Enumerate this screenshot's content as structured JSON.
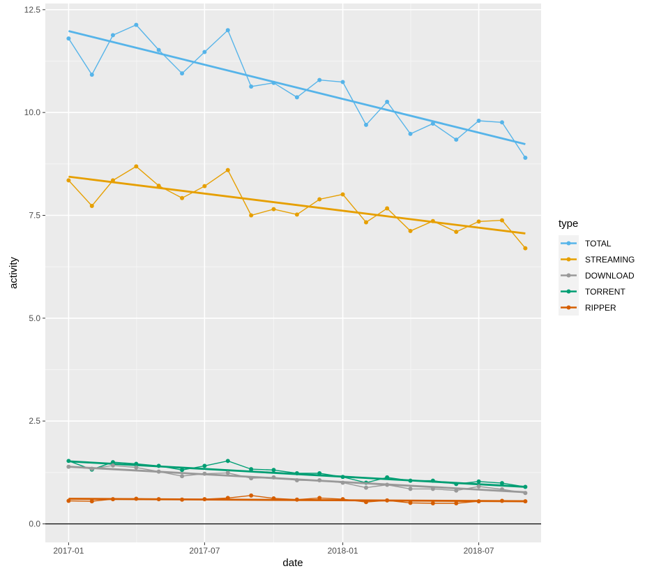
{
  "chart_data": {
    "type": "line",
    "xlabel": "date",
    "ylabel": "activity",
    "ylim": [
      -0.45,
      12.65
    ],
    "xlim": [
      "2016-12-01",
      "2018-09-22"
    ],
    "background": "#ebebeb",
    "grid": true,
    "legend": {
      "title": "type",
      "position": "right"
    },
    "x_ticks": [
      {
        "value": "2017-01-01",
        "label": "2017-01"
      },
      {
        "value": "2017-07-01",
        "label": "2017-07"
      },
      {
        "value": "2018-01-01",
        "label": "2018-01"
      },
      {
        "value": "2018-07-01",
        "label": "2018-07"
      }
    ],
    "y_ticks": [
      0,
      2.5,
      5,
      7.5,
      10,
      12.5
    ],
    "y_tick_labels": [
      "0.0",
      "2.5",
      "5.0",
      "7.5",
      "10.0",
      "12.5"
    ],
    "hline": 0,
    "x": [
      "2017-01-01",
      "2017-02-01",
      "2017-03-01",
      "2017-04-01",
      "2017-05-01",
      "2017-06-01",
      "2017-07-01",
      "2017-08-01",
      "2017-09-01",
      "2017-10-01",
      "2017-11-01",
      "2017-12-01",
      "2018-01-01",
      "2018-02-01",
      "2018-03-01",
      "2018-04-01",
      "2018-05-01",
      "2018-06-01",
      "2018-07-01",
      "2018-08-01",
      "2018-09-01"
    ],
    "series": [
      {
        "name": "TOTAL",
        "color": "#56b4e9",
        "values": [
          11.8,
          10.92,
          11.88,
          12.13,
          11.52,
          10.95,
          11.47,
          12.0,
          10.63,
          10.72,
          10.37,
          10.79,
          10.74,
          9.7,
          10.26,
          9.48,
          9.73,
          9.34,
          9.8,
          9.76,
          8.9
        ],
        "trend": [
          11.98,
          9.23
        ]
      },
      {
        "name": "STREAMING",
        "color": "#e69f00",
        "values": [
          8.35,
          7.73,
          8.35,
          8.69,
          8.22,
          7.92,
          8.21,
          8.6,
          7.5,
          7.65,
          7.52,
          7.89,
          8.01,
          7.33,
          7.67,
          7.12,
          7.36,
          7.1,
          7.35,
          7.38,
          6.7
        ],
        "trend": [
          8.44,
          7.06
        ]
      },
      {
        "name": "DOWNLOAD",
        "color": "#999999",
        "values": [
          1.39,
          1.34,
          1.42,
          1.37,
          1.27,
          1.16,
          1.22,
          1.24,
          1.11,
          1.13,
          1.06,
          1.06,
          1.0,
          0.88,
          0.95,
          0.85,
          0.85,
          0.81,
          0.91,
          0.84,
          0.75
        ],
        "trend": [
          1.39,
          0.77
        ]
      },
      {
        "name": "TORRENT",
        "color": "#009e73",
        "values": [
          1.53,
          1.32,
          1.5,
          1.46,
          1.41,
          1.31,
          1.41,
          1.53,
          1.33,
          1.31,
          1.23,
          1.23,
          1.14,
          1.0,
          1.13,
          1.05,
          1.05,
          0.97,
          1.03,
          0.99,
          0.9
        ],
        "trend": [
          1.52,
          0.9
        ]
      },
      {
        "name": "RIPPER",
        "color": "#d55e00",
        "values": [
          0.56,
          0.55,
          0.6,
          0.61,
          0.6,
          0.59,
          0.6,
          0.63,
          0.69,
          0.62,
          0.59,
          0.63,
          0.6,
          0.53,
          0.57,
          0.51,
          0.5,
          0.5,
          0.55,
          0.56,
          0.55
        ],
        "trend": [
          0.61,
          0.55
        ]
      }
    ]
  }
}
